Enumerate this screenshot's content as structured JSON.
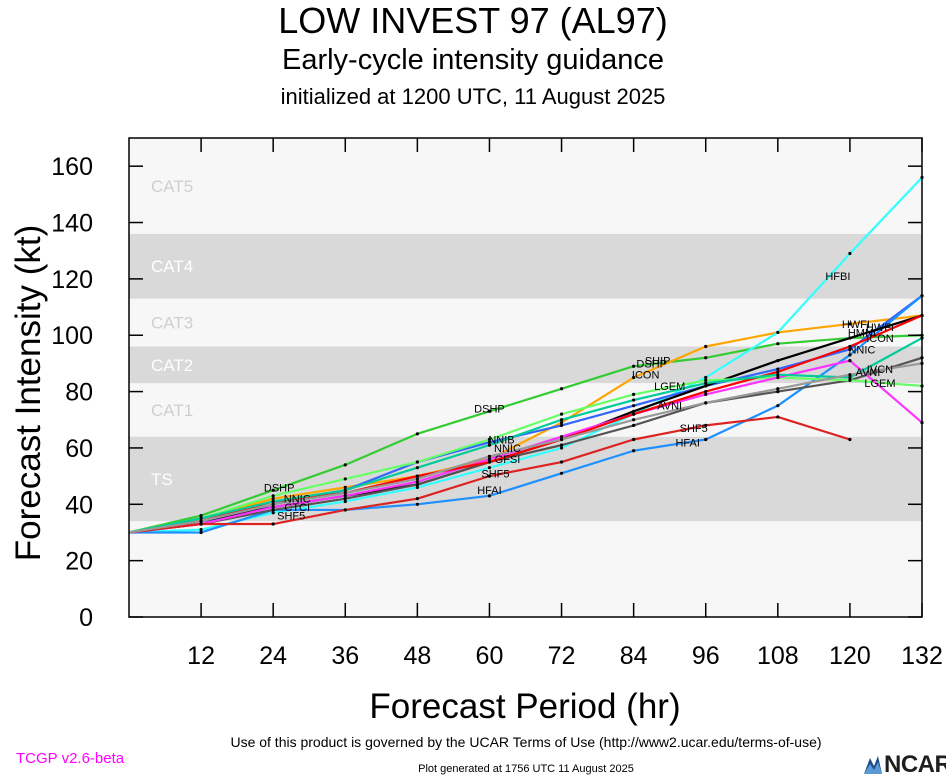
{
  "header": {
    "title": "LOW INVEST 97 (AL97)",
    "subtitle": "Early-cycle intensity guidance",
    "init": "initialized at 1200 UTC, 11 August 2025"
  },
  "footer": {
    "terms": "Use of this product is governed by the UCAR Terms of Use (http://www2.ucar.edu/terms-of-use)",
    "version": "TCGP v2.6-beta",
    "generated": "Plot generated at 1756 UTC   11 August 2025",
    "logo_text": "NCAR"
  },
  "chart_data": {
    "type": "line",
    "xlabel": "Forecast Period (hr)",
    "ylabel": "Forecast Intensity (kt)",
    "xlim": [
      0,
      132
    ],
    "ylim": [
      0,
      170
    ],
    "xticks": [
      12,
      24,
      36,
      48,
      60,
      72,
      84,
      96,
      108,
      120,
      132
    ],
    "yticks": [
      0,
      20,
      40,
      60,
      80,
      100,
      120,
      140,
      160
    ],
    "bands": [
      {
        "label": "TS",
        "from": 34,
        "to": 64,
        "color": "#d9d9d9"
      },
      {
        "label": "CAT1",
        "from": 64,
        "to": 83,
        "color": "#f7f7f7"
      },
      {
        "label": "CAT2",
        "from": 83,
        "to": 96,
        "color": "#d9d9d9"
      },
      {
        "label": "CAT3",
        "from": 96,
        "to": 113,
        "color": "#f7f7f7"
      },
      {
        "label": "CAT4",
        "from": 113,
        "to": 136,
        "color": "#d9d9d9"
      },
      {
        "label": "CAT5",
        "from": 136,
        "to": 170,
        "color": "#f7f7f7"
      }
    ],
    "base_fill": "#f7f7f7",
    "series": [
      {
        "name": "DSHP",
        "color": "#33cc33",
        "x": [
          0,
          12,
          24,
          36,
          48,
          60,
          72,
          84,
          96,
          108,
          120,
          132
        ],
        "y": [
          30,
          36,
          45,
          54,
          65,
          73,
          81,
          89,
          92,
          97,
          99,
          100
        ],
        "labels": [
          {
            "text": "DSHP",
            "x": 25,
            "y": 46
          },
          {
            "text": "DSHP",
            "x": 60,
            "y": 74
          },
          {
            "text": "DSHP",
            "x": 87,
            "y": 90
          }
        ]
      },
      {
        "name": "SHIP",
        "color": "#ffa500",
        "x": [
          0,
          12,
          24,
          36,
          48,
          60,
          72,
          84,
          96,
          108,
          120,
          132
        ],
        "y": [
          30,
          35,
          42,
          46,
          50,
          56,
          69,
          85,
          96,
          101,
          104,
          107
        ],
        "labels": [
          {
            "text": "SHIP",
            "x": 88,
            "y": 91
          },
          {
            "text": "HWFI",
            "x": 121,
            "y": 104
          }
        ]
      },
      {
        "name": "HFBI",
        "color": "#33ffff",
        "x": [
          0,
          12,
          24,
          36,
          48,
          60,
          72,
          84,
          96,
          108,
          120,
          132
        ],
        "y": [
          30,
          31,
          37,
          41,
          46,
          53,
          60,
          72,
          85,
          101,
          129,
          156
        ],
        "labels": [
          {
            "text": "HFBI",
            "x": 118,
            "y": 121
          }
        ]
      },
      {
        "name": "HMNI",
        "color": "#3366ff",
        "x": [
          0,
          12,
          24,
          36,
          48,
          60,
          72,
          84,
          96,
          108,
          120,
          132
        ],
        "y": [
          30,
          33,
          40,
          45,
          55,
          62,
          68,
          75,
          82,
          88,
          95,
          114
        ],
        "labels": [
          {
            "text": "HMNI",
            "x": 122,
            "y": 101
          }
        ]
      },
      {
        "name": "HFAI",
        "color": "#1e90ff",
        "x": [
          0,
          12,
          24,
          36,
          48,
          60,
          72,
          84,
          96,
          108,
          120,
          132
        ],
        "y": [
          30,
          30,
          38,
          38,
          40,
          43,
          51,
          59,
          63,
          75,
          93,
          114
        ],
        "labels": [
          {
            "text": "HFAI",
            "x": 60,
            "y": 45
          },
          {
            "text": "HFAI",
            "x": 93,
            "y": 62
          }
        ]
      },
      {
        "name": "ICON",
        "color": "#000000",
        "x": [
          0,
          12,
          24,
          36,
          48,
          60,
          72,
          84,
          96,
          108,
          120,
          132
        ],
        "y": [
          30,
          34,
          39,
          43,
          47,
          55,
          63,
          73,
          82,
          91,
          99,
          107
        ],
        "labels": [
          {
            "text": "ICON",
            "x": 86,
            "y": 86
          },
          {
            "text": "ICON",
            "x": 125,
            "y": 99
          }
        ]
      },
      {
        "name": "IVCN",
        "color": "#555555",
        "x": [
          0,
          12,
          24,
          36,
          48,
          60,
          72,
          84,
          96,
          108,
          120,
          132
        ],
        "y": [
          30,
          33,
          38,
          42,
          47,
          55,
          61,
          68,
          76,
          80,
          84,
          92
        ],
        "labels": [
          {
            "text": "IVCN",
            "x": 125,
            "y": 88
          }
        ]
      },
      {
        "name": "LGEM",
        "color": "#66ff66",
        "x": [
          0,
          12,
          24,
          36,
          48,
          60,
          72,
          84,
          96,
          108,
          120,
          132
        ],
        "y": [
          30,
          35,
          43,
          49,
          55,
          63,
          72,
          79,
          84,
          85,
          84,
          82
        ],
        "labels": [
          {
            "text": "LGEM",
            "x": 90,
            "y": 82
          },
          {
            "text": "LGEM",
            "x": 125,
            "y": 83
          }
        ]
      },
      {
        "name": "AVNI",
        "color": "#ff33ff",
        "x": [
          0,
          12,
          24,
          36,
          48,
          60,
          72,
          84,
          96,
          108,
          120,
          132
        ],
        "y": [
          30,
          33,
          39,
          43,
          48,
          56,
          64,
          72,
          79,
          85,
          91,
          69
        ],
        "labels": [
          {
            "text": "AVNI",
            "x": 90,
            "y": 75
          },
          {
            "text": "AVNI",
            "x": 123,
            "y": 87
          }
        ]
      },
      {
        "name": "NNIC",
        "color": "#ff0000",
        "x": [
          0,
          12,
          24,
          36,
          48,
          60,
          72,
          84,
          96,
          108,
          120,
          132
        ],
        "y": [
          30,
          34,
          41,
          44,
          50,
          55,
          63,
          72,
          80,
          87,
          96,
          107
        ],
        "labels": [
          {
            "text": "NNIC",
            "x": 28,
            "y": 42
          },
          {
            "text": "NNIC",
            "x": 63,
            "y": 60
          },
          {
            "text": "NNIC",
            "x": 122,
            "y": 95
          }
        ]
      },
      {
        "name": "SHF5",
        "color": "#dd2222",
        "x": [
          0,
          12,
          24,
          36,
          48,
          60,
          72,
          84,
          96,
          108,
          120
        ],
        "y": [
          30,
          33,
          33,
          38,
          42,
          50,
          55,
          63,
          68,
          71,
          63
        ],
        "labels": [
          {
            "text": "SHF5",
            "x": 27,
            "y": 36
          },
          {
            "text": "SHF5",
            "x": 61,
            "y": 51
          },
          {
            "text": "SHF5",
            "x": 94,
            "y": 67
          }
        ]
      },
      {
        "name": "NNIB",
        "color": "#00cc99",
        "x": [
          0,
          12,
          24,
          36,
          48,
          60,
          72,
          84,
          96,
          108,
          120,
          132
        ],
        "y": [
          30,
          35,
          41,
          45,
          53,
          61,
          70,
          77,
          83,
          86,
          85,
          99
        ],
        "labels": [
          {
            "text": "NNIB",
            "x": 62,
            "y": 63
          },
          {
            "text": "HWFI",
            "x": 125,
            "y": 103
          }
        ]
      },
      {
        "name": "GFSI",
        "color": "#999999",
        "x": [
          0,
          12,
          24,
          36,
          48,
          60,
          72,
          84,
          96,
          108,
          120,
          132
        ],
        "y": [
          30,
          34,
          40,
          44,
          49,
          57,
          63,
          70,
          76,
          81,
          86,
          90
        ],
        "labels": [
          {
            "text": "GFSI",
            "x": 63,
            "y": 56
          },
          {
            "text": "CTCI",
            "x": 28,
            "y": 39
          }
        ]
      }
    ]
  }
}
